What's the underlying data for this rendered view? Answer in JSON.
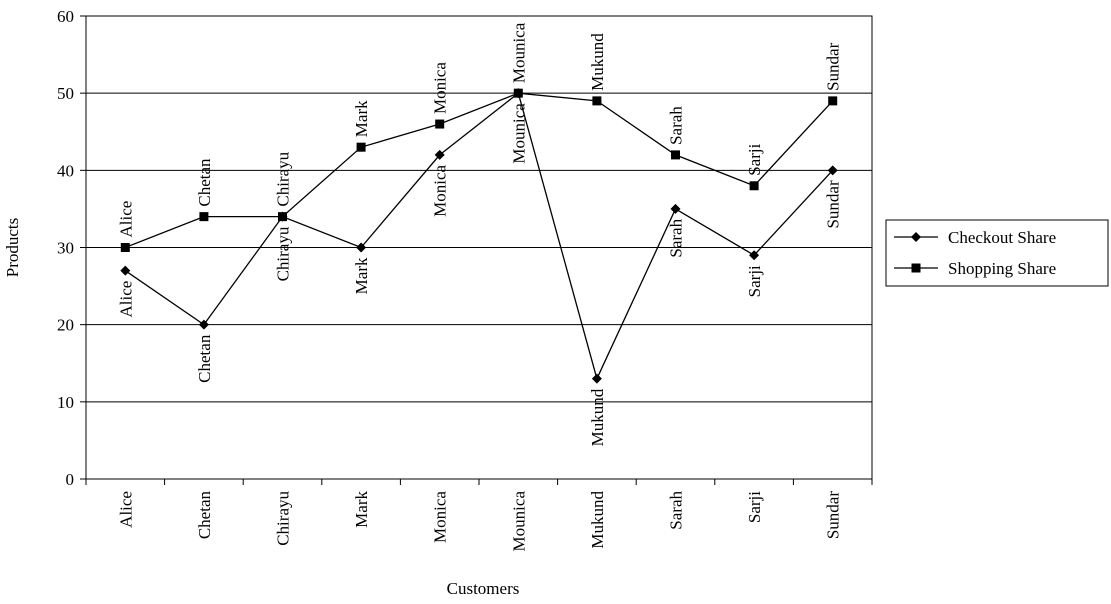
{
  "chart_data": {
    "type": "line",
    "title": "",
    "xlabel": "Customers",
    "ylabel": "Products",
    "categories": [
      "Alice",
      "Chetan",
      "Chirayu",
      "Mark",
      "Monica",
      "Mounica",
      "Mukund",
      "Sarah",
      "Sarji",
      "Sundar"
    ],
    "series": [
      {
        "name": "Checkout Share",
        "marker": "diamond",
        "values": [
          27,
          20,
          34,
          30,
          42,
          50,
          13,
          35,
          29,
          40
        ]
      },
      {
        "name": "Shopping Share",
        "marker": "square",
        "values": [
          30,
          34,
          34,
          43,
          46,
          50,
          49,
          42,
          38,
          49
        ]
      }
    ],
    "ylim": [
      0,
      60
    ],
    "yticks": [
      0,
      10,
      20,
      30,
      40,
      50,
      60
    ],
    "grid": true,
    "legend_position": "right",
    "point_labels": true,
    "colors": {
      "line": "#000000",
      "background": "#ffffff"
    }
  }
}
